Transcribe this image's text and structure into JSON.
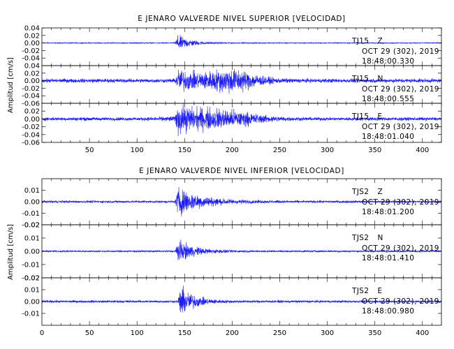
{
  "colors": {
    "trace": "#1a1aff",
    "axis": "#000000",
    "background": "#ffffff"
  },
  "chart_data": [
    {
      "type": "line",
      "title": "E JENARO VALVERDE NIVEL SUPERIOR [VELOCIDAD]",
      "ylabel": "Amplitud [cm/s]",
      "xlim": [
        0,
        420
      ],
      "x_ticks": [
        "50",
        "100",
        "150",
        "200",
        "250",
        "300",
        "350",
        "400"
      ],
      "panels": [
        {
          "station": "TJ15",
          "component": "Z",
          "date": "OCT 29 (302), 2019",
          "time": "18:48:00.330",
          "ylim": [
            -0.06,
            0.04
          ],
          "y_ticks": [
            "0.04",
            "0.02",
            "0.00",
            "-0.02",
            "-0.04"
          ],
          "envelope": {
            "noise": 0.0015,
            "onset": 140,
            "peak": 0.03,
            "decay": 14,
            "coda": []
          }
        },
        {
          "station": "TJ15",
          "component": "N",
          "date": "OCT 29 (302), 2019",
          "time": "18:48:00.555",
          "ylim": [
            -0.06,
            0.04
          ],
          "y_ticks": [
            "0.04",
            "0.02",
            "0.00",
            "-0.02",
            "-0.04",
            "-0.06"
          ],
          "envelope": {
            "noise": 0.006,
            "onset": 140,
            "peak": 0.035,
            "decay": 30,
            "coda": [
              {
                "center": 200,
                "width": 28,
                "amp": 0.028
              }
            ]
          }
        },
        {
          "station": "TJ15",
          "component": "E",
          "date": "OCT 29 (302), 2019",
          "time": "18:48:01.040",
          "ylim": [
            -0.06,
            0.04
          ],
          "y_ticks": [
            "0.02",
            "0.00",
            "-0.02",
            "-0.04",
            "-0.06"
          ],
          "envelope": {
            "noise": 0.005,
            "onset": 140,
            "peak": 0.042,
            "decay": 25,
            "coda": [
              {
                "center": 190,
                "width": 40,
                "amp": 0.02
              }
            ]
          }
        }
      ]
    },
    {
      "type": "line",
      "title": "E JENARO VALVERDE NIVEL INFERIOR [VELOCIDAD]",
      "ylabel": "Amplitud [cm/s]",
      "xlim": [
        0,
        420
      ],
      "x_ticks": [
        "0",
        "50",
        "100",
        "150",
        "200",
        "250",
        "300",
        "350",
        "400"
      ],
      "panels": [
        {
          "station": "TJS2",
          "component": "Z",
          "date": "OCT 29 (302), 2019",
          "time": "18:48:01.200",
          "ylim": [
            -0.02,
            0.02
          ],
          "y_ticks": [
            "0.01",
            "0.00",
            "-0.01",
            "-0.02"
          ],
          "envelope": {
            "noise": 0.0012,
            "onset": 140,
            "peak": 0.016,
            "decay": 25,
            "coda": []
          }
        },
        {
          "station": "TJS2",
          "component": "N",
          "date": "OCT 29 (302), 2019",
          "time": "18:48:01.410",
          "ylim": [
            -0.02,
            0.02
          ],
          "y_ticks": [
            "0.02",
            "0.01",
            "0.00",
            "-0.01",
            "-0.02"
          ],
          "envelope": {
            "noise": 0.0008,
            "onset": 140,
            "peak": 0.011,
            "decay": 18,
            "coda": []
          }
        },
        {
          "station": "TJS2",
          "component": "E",
          "date": "OCT 29 (302), 2019",
          "time": "18:48:00.980",
          "ylim": [
            -0.02,
            0.02
          ],
          "y_ticks": [
            "0.02",
            "0.01",
            "0.00",
            "-0.01"
          ],
          "envelope": {
            "noise": 0.0012,
            "onset": 143,
            "peak": 0.018,
            "decay": 14,
            "coda": []
          }
        }
      ]
    }
  ]
}
